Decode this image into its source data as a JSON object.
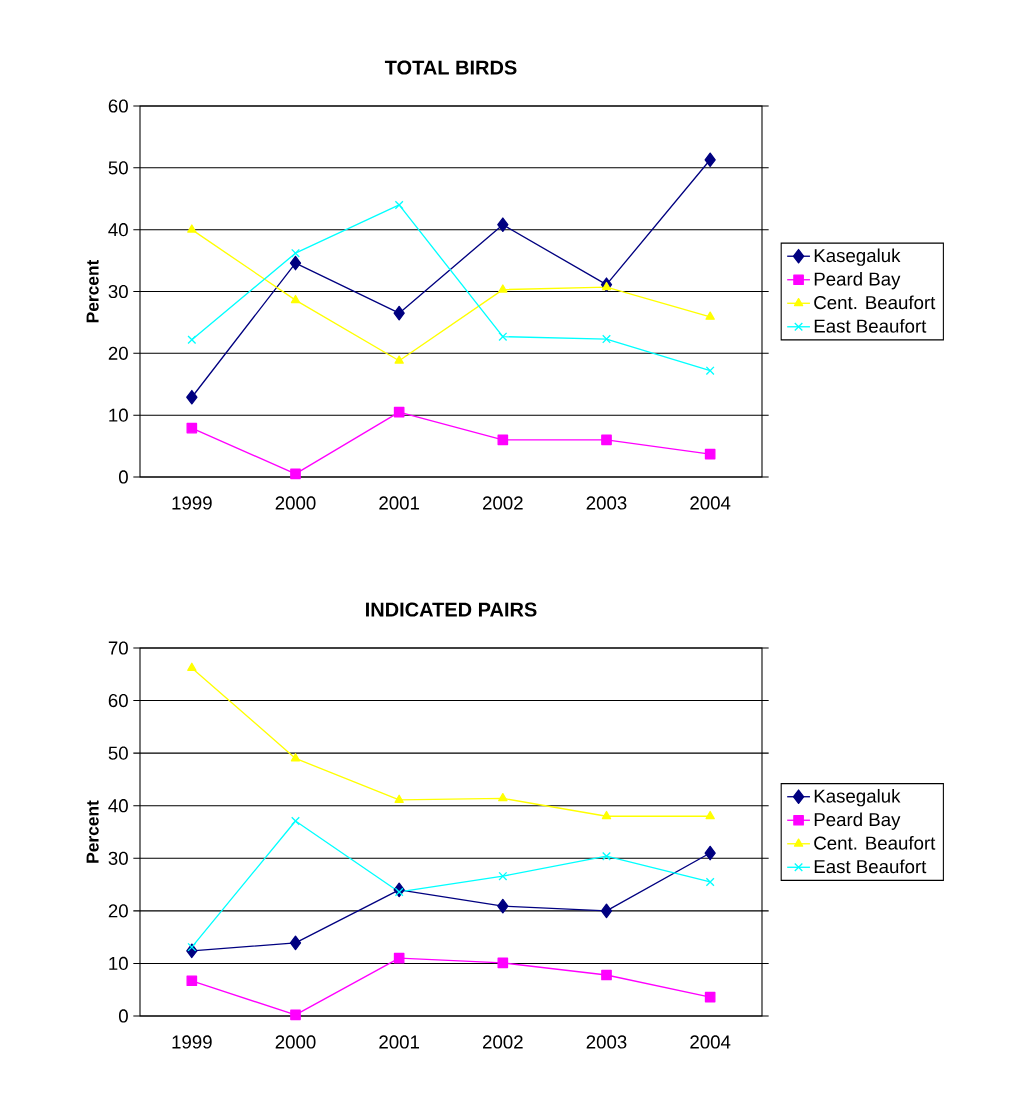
{
  "chart_data": [
    {
      "type": "line",
      "title": "TOTAL BIRDS",
      "ylabel": "Percent",
      "categories": [
        "1999",
        "2000",
        "2001",
        "2002",
        "2003",
        "2004"
      ],
      "ylim": [
        0,
        60
      ],
      "yticks": [
        0,
        10,
        20,
        30,
        40,
        50,
        60
      ],
      "grid": "y",
      "legend": "right",
      "line_style": "solid",
      "series": [
        {
          "name": "Kasegaluk",
          "color": "#000080",
          "marker": "diamond",
          "values": [
            12.9,
            34.6,
            26.5,
            40.8,
            31.1,
            51.3
          ]
        },
        {
          "name": "Peard Bay",
          "color": "#ff00ff",
          "marker": "square",
          "values": [
            7.9,
            0.5,
            10.5,
            6.0,
            6.0,
            3.7
          ]
        },
        {
          "name": "Cent. Beaufort",
          "color": "#ffff00",
          "marker": "triangle",
          "values": [
            40.0,
            28.6,
            18.8,
            30.3,
            30.7,
            25.9
          ]
        },
        {
          "name": "East Beaufort",
          "color": "#00ffff",
          "marker": "cross",
          "values": [
            22.2,
            36.2,
            44.0,
            22.7,
            22.3,
            17.2
          ]
        }
      ]
    },
    {
      "type": "line",
      "title": "INDICATED PAIRS",
      "ylabel": "Percent",
      "categories": [
        "1999",
        "2000",
        "2001",
        "2002",
        "2003",
        "2004"
      ],
      "ylim": [
        0,
        70
      ],
      "yticks": [
        0,
        10,
        20,
        30,
        40,
        50,
        60,
        70
      ],
      "grid": "y",
      "legend": "right",
      "line_style": "solid",
      "series": [
        {
          "name": "Kasegaluk",
          "color": "#000080",
          "marker": "diamond",
          "values": [
            12.4,
            13.9,
            24.0,
            20.9,
            20.0,
            31.0
          ]
        },
        {
          "name": "Peard Bay",
          "color": "#ff00ff",
          "marker": "square",
          "values": [
            6.7,
            0.2,
            11.0,
            10.1,
            7.8,
            3.6
          ]
        },
        {
          "name": "Cent. Beaufort",
          "color": "#ffff00",
          "marker": "triangle",
          "values": [
            66.2,
            49.0,
            41.1,
            41.4,
            38.0,
            38.0
          ]
        },
        {
          "name": "East Beaufort",
          "color": "#00ffff",
          "marker": "cross",
          "values": [
            13.1,
            37.1,
            23.6,
            26.6,
            30.4,
            25.5
          ]
        }
      ]
    }
  ]
}
